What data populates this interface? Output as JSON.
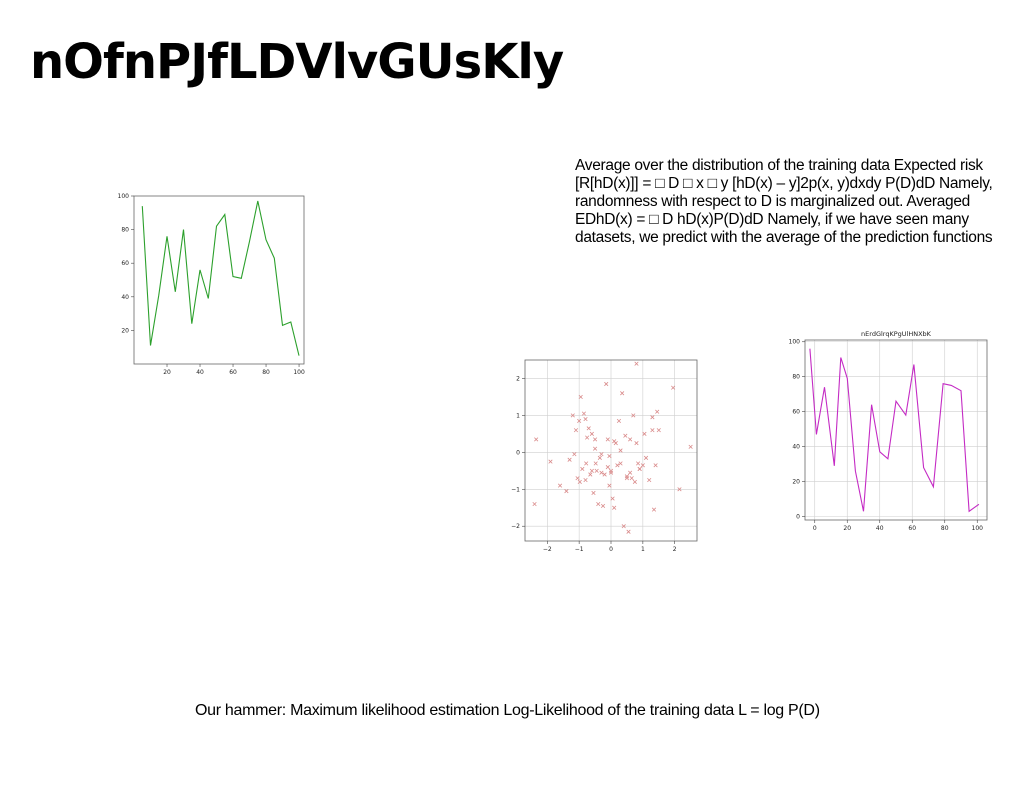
{
  "slide": {
    "title": "nOfnPJfLDVlvGUsKly",
    "body": "Average over the distribution of the training data Expected risk [R[hD(x)]] = □ D □ x □ y [hD(x) – y]2p(x, y)dxdy P(D)dD Namely, randomness with respect to D is marginalized out. Averaged EDhD(x) = □ D hD(x)P(D)dD Namely, if we have seen many datasets, we predict with the average of the prediction functions",
    "caption": "Our hammer: Maximum likelihood estimation Log-Likelihood of the training data L = log P(D)"
  },
  "chart_data": [
    {
      "type": "line",
      "title": "",
      "color": "#2ca02c",
      "grid": false,
      "x": [
        5,
        10,
        15,
        20,
        25,
        30,
        35,
        40,
        45,
        50,
        55,
        60,
        65,
        70,
        75,
        80,
        85,
        90,
        95,
        100
      ],
      "y": [
        94,
        11,
        41,
        76,
        43,
        80,
        24,
        56,
        39,
        82,
        89,
        52,
        51,
        73,
        97,
        74,
        63,
        23,
        25,
        5
      ],
      "xlim": [
        0,
        103
      ],
      "ylim": [
        0,
        100
      ],
      "xticks": [
        20,
        40,
        60,
        80,
        100
      ],
      "yticks": [
        20,
        40,
        60,
        80,
        100
      ]
    },
    {
      "type": "scatter",
      "title": "",
      "color": "#d98a8a",
      "marker": "x",
      "grid": true,
      "xlim": [
        -2.7,
        2.7
      ],
      "ylim": [
        -2.4,
        2.5
      ],
      "xticks": [
        -2,
        -1,
        0,
        1,
        2
      ],
      "yticks": [
        -2,
        -1,
        0,
        1,
        2
      ],
      "x": [
        -2.4,
        -2.35,
        -1.9,
        -1.6,
        -1.4,
        -1.3,
        -1.2,
        -1.15,
        -1.1,
        -1.05,
        -1.0,
        -0.98,
        -0.95,
        -0.9,
        -0.85,
        -0.8,
        -0.78,
        -0.75,
        -0.7,
        -0.65,
        -0.6,
        -0.55,
        -0.5,
        -0.48,
        -0.45,
        -0.4,
        -0.35,
        -0.3,
        -0.3,
        -0.25,
        -0.2,
        -0.15,
        -0.1,
        -0.1,
        -0.05,
        0.0,
        0.0,
        0.05,
        0.1,
        0.1,
        0.15,
        0.2,
        0.25,
        0.3,
        0.35,
        0.4,
        0.45,
        0.5,
        0.55,
        0.6,
        0.65,
        0.7,
        0.75,
        0.8,
        0.85,
        0.9,
        0.9,
        1.0,
        1.05,
        1.1,
        1.2,
        1.3,
        1.35,
        1.4,
        1.45,
        1.5,
        1.95,
        2.15,
        2.5,
        -0.05,
        0.8,
        0.5,
        0.6,
        -0.8,
        0.3,
        -0.5,
        1.3,
        -0.6
      ],
      "y": [
        -1.4,
        0.35,
        -0.25,
        -0.9,
        -1.05,
        -0.2,
        1.0,
        -0.05,
        0.6,
        -0.7,
        0.85,
        -0.8,
        1.5,
        -0.45,
        1.05,
        -0.75,
        -0.3,
        0.4,
        0.65,
        -0.6,
        0.5,
        -1.1,
        0.1,
        -0.3,
        -0.5,
        -1.4,
        -0.15,
        -0.55,
        -0.05,
        -1.45,
        -0.6,
        1.85,
        -0.4,
        0.35,
        -0.1,
        -0.55,
        -0.5,
        -1.25,
        -1.5,
        0.3,
        0.25,
        -0.35,
        0.85,
        -0.3,
        1.6,
        -2.0,
        0.45,
        -0.65,
        -2.15,
        0.35,
        -0.7,
        1.0,
        -0.8,
        0.25,
        -0.3,
        -0.45,
        -0.45,
        -0.35,
        0.5,
        -0.15,
        -0.75,
        0.6,
        -1.55,
        -0.35,
        1.1,
        0.6,
        1.75,
        -1.0,
        0.15,
        -0.9,
        2.4,
        -0.7,
        -0.55,
        0.9,
        0.05,
        0.35,
        0.95,
        -0.5
      ]
    },
    {
      "type": "line",
      "title": "nErdGlrqKPgUlHNXbK",
      "color": "#c42bc4",
      "grid": true,
      "x": [
        -3,
        1,
        6,
        12,
        16,
        20,
        25,
        30,
        35,
        40,
        45,
        50,
        56,
        61,
        67,
        73,
        79,
        84,
        90,
        95,
        101
      ],
      "y": [
        96,
        47,
        74,
        29,
        91,
        79,
        26,
        3,
        64,
        37,
        33,
        66,
        58,
        87,
        28,
        17,
        76,
        75,
        72,
        3,
        7
      ],
      "xlim": [
        -6,
        106
      ],
      "ylim": [
        -2,
        101
      ],
      "xticks": [
        0,
        20,
        40,
        60,
        80,
        100
      ],
      "yticks": [
        0,
        20,
        40,
        60,
        80,
        100
      ]
    }
  ]
}
